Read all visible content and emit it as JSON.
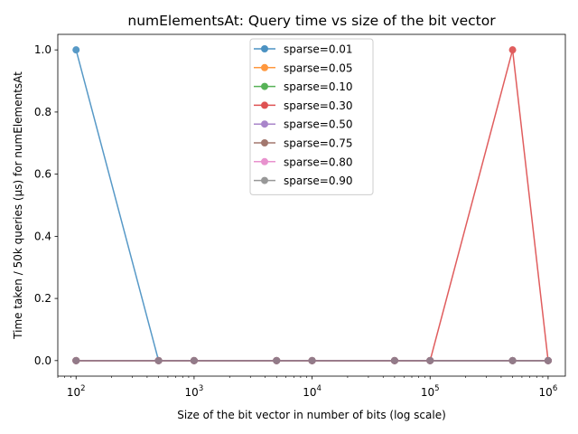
{
  "chart_data": {
    "type": "line",
    "title": "numElementsAt: Query time vs size of the bit vector",
    "xlabel": "Size of the bit vector in number of bits (log scale)",
    "ylabel": "Time taken / 50k queries (µs) for numElementsAt",
    "xscale": "log",
    "xlim": [
      70,
      1400000
    ],
    "ylim": [
      -0.05,
      1.05
    ],
    "x": [
      100,
      500,
      1000,
      5000,
      10000,
      50000,
      100000,
      500000,
      1000000
    ],
    "x_ticks": [
      {
        "value": 100,
        "base": "10",
        "exp": "2"
      },
      {
        "value": 1000,
        "base": "10",
        "exp": "3"
      },
      {
        "value": 10000,
        "base": "10",
        "exp": "4"
      },
      {
        "value": 100000,
        "base": "10",
        "exp": "5"
      },
      {
        "value": 1000000,
        "base": "10",
        "exp": "6"
      }
    ],
    "y_ticks": [
      "0.0",
      "0.2",
      "0.4",
      "0.6",
      "0.8",
      "1.0"
    ],
    "grid": false,
    "legend_position": "top-center",
    "series": [
      {
        "name": "sparse=0.01",
        "color": "#1f77b4",
        "values": [
          1,
          0,
          0,
          0,
          0,
          0,
          0,
          0,
          0
        ]
      },
      {
        "name": "sparse=0.05",
        "color": "#ff7f0e",
        "values": [
          0,
          0,
          0,
          0,
          0,
          0,
          0,
          0,
          0
        ]
      },
      {
        "name": "sparse=0.10",
        "color": "#2ca02c",
        "values": [
          0,
          0,
          0,
          0,
          0,
          0,
          0,
          0,
          0
        ]
      },
      {
        "name": "sparse=0.30",
        "color": "#d62728",
        "values": [
          0,
          0,
          0,
          0,
          0,
          0,
          0,
          1,
          0
        ]
      },
      {
        "name": "sparse=0.50",
        "color": "#9467bd",
        "values": [
          0,
          0,
          0,
          0,
          0,
          0,
          0,
          0,
          0
        ]
      },
      {
        "name": "sparse=0.75",
        "color": "#8c564b",
        "values": [
          0,
          0,
          0,
          0,
          0,
          0,
          0,
          0,
          0
        ]
      },
      {
        "name": "sparse=0.80",
        "color": "#e377c2",
        "values": [
          0,
          0,
          0,
          0,
          0,
          0,
          0,
          0,
          0
        ]
      },
      {
        "name": "sparse=0.90",
        "color": "#7f7f7f",
        "values": [
          0,
          0,
          0,
          0,
          0,
          0,
          0,
          0,
          0
        ]
      }
    ]
  }
}
